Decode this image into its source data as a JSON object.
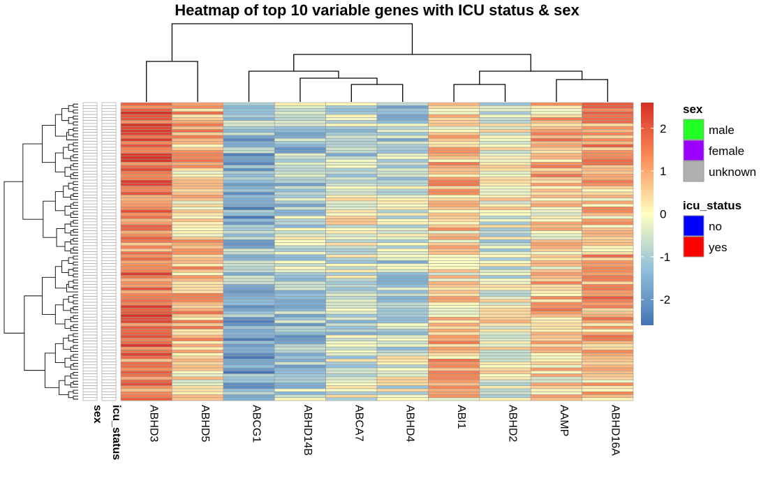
{
  "chart_data": {
    "type": "heatmap",
    "title": "Heatmap of top 10 variable genes with ICU status & sex",
    "columns": [
      "ABHD3",
      "ABHD5",
      "ABCG1",
      "ABHD14B",
      "ABCA7",
      "ABHD4",
      "ABI1",
      "ABHD2",
      "AAMP",
      "ABHD16A"
    ],
    "column_means": [
      1.6,
      0.7,
      -1.5,
      -0.9,
      -0.5,
      -0.7,
      0.5,
      -0.1,
      0.6,
      0.9
    ],
    "annotation_tracks": [
      "sex",
      "icu_status"
    ],
    "n_rows": 100,
    "row_label_shown": false,
    "color_scale": {
      "range": [
        -2.6,
        2.6
      ],
      "ticks": [
        2,
        1,
        0,
        -1,
        -2
      ],
      "tick_labels": [
        "2",
        "1",
        "0",
        "-1",
        "-2"
      ],
      "stops": [
        {
          "value": -2.6,
          "color": "#4575b4"
        },
        {
          "value": -1.3,
          "color": "#91bfdb"
        },
        {
          "value": 0,
          "color": "#ffffbf"
        },
        {
          "value": 1.3,
          "color": "#fc8d59"
        },
        {
          "value": 2.6,
          "color": "#d73027"
        }
      ]
    },
    "legends": [
      {
        "title": "sex",
        "items": [
          {
            "label": "male",
            "color": "#22ff22"
          },
          {
            "label": "female",
            "color": "#9900ff"
          },
          {
            "label": "unknown",
            "color": "#b0b0b0"
          }
        ]
      },
      {
        "title": "icu_status",
        "items": [
          {
            "label": "no",
            "color": "#0000ff"
          },
          {
            "label": "yes",
            "color": "#ff0000"
          }
        ]
      }
    ],
    "annotation_fill": "#ffffff",
    "cell_border": "#9a9a9a"
  }
}
